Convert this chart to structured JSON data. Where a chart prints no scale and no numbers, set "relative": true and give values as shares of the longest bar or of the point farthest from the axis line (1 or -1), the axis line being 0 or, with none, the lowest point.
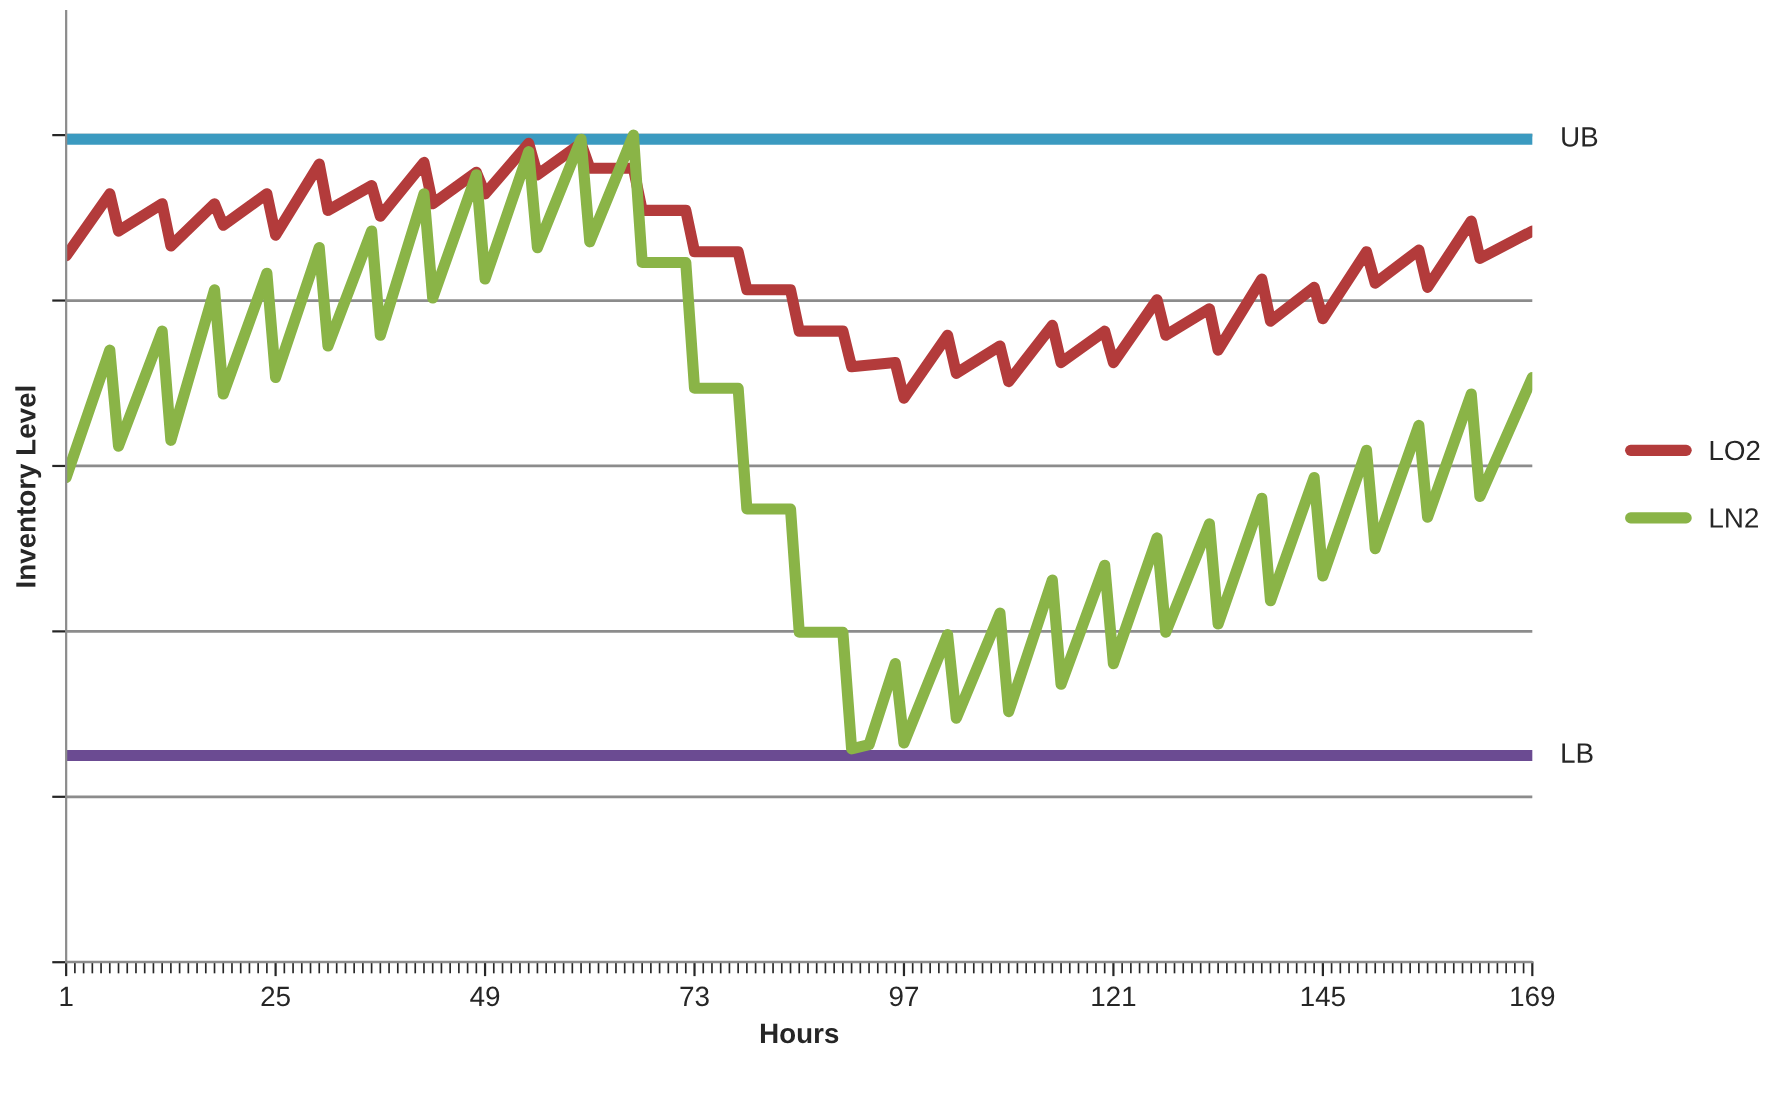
{
  "chart_data": {
    "type": "line",
    "relative": true,
    "xlabel": "Hours",
    "ylabel": "Inventory Level",
    "xlim": [
      1,
      169
    ],
    "xticks": [
      1,
      25,
      49,
      73,
      97,
      121,
      145,
      169
    ],
    "grid": "y",
    "legend": "right",
    "tick_labels": "x",
    "marker": "none",
    "line_style": "solid",
    "series": [
      {
        "name": "LO2",
        "color": "#b33b3b",
        "x": [
          1,
          6,
          7,
          12,
          13,
          18,
          19,
          24,
          25,
          30,
          31,
          36,
          37,
          42,
          43,
          48,
          49,
          54,
          55,
          60,
          61,
          66,
          67,
          72,
          73,
          78,
          79,
          84,
          85,
          90,
          91,
          96,
          97,
          102,
          103,
          108,
          109,
          114,
          115,
          120,
          121,
          126,
          127,
          132,
          133,
          138,
          139,
          144,
          145,
          150,
          151,
          156,
          157,
          162,
          163,
          169
        ],
        "values": [
          0.854,
          0.929,
          0.884,
          0.917,
          0.866,
          0.917,
          0.891,
          0.929,
          0.879,
          0.965,
          0.909,
          0.939,
          0.902,
          0.967,
          0.917,
          0.955,
          0.929,
          0.99,
          0.952,
          0.99,
          0.96,
          0.96,
          0.909,
          0.909,
          0.859,
          0.859,
          0.813,
          0.813,
          0.763,
          0.763,
          0.72,
          0.725,
          0.682,
          0.758,
          0.712,
          0.745,
          0.702,
          0.77,
          0.725,
          0.763,
          0.725,
          0.801,
          0.758,
          0.79,
          0.74,
          0.826,
          0.775,
          0.816,
          0.778,
          0.859,
          0.821,
          0.861,
          0.816,
          0.896,
          0.851,
          0.884
        ]
      },
      {
        "name": "LN2",
        "color": "#8ab447",
        "x": [
          1,
          6,
          7,
          12,
          13,
          18,
          19,
          24,
          25,
          30,
          31,
          36,
          37,
          42,
          43,
          48,
          49,
          54,
          55,
          60,
          61,
          66,
          67,
          72,
          73,
          78,
          79,
          84,
          85,
          90,
          91,
          93,
          96,
          97,
          102,
          103,
          108,
          109,
          114,
          115,
          120,
          121,
          126,
          127,
          132,
          133,
          138,
          139,
          144,
          145,
          150,
          151,
          156,
          157,
          162,
          163,
          169
        ],
        "values": [
          0.586,
          0.74,
          0.624,
          0.763,
          0.631,
          0.813,
          0.687,
          0.833,
          0.707,
          0.864,
          0.745,
          0.884,
          0.758,
          0.929,
          0.803,
          0.952,
          0.826,
          0.98,
          0.864,
          0.995,
          0.871,
          1.0,
          0.846,
          0.846,
          0.694,
          0.694,
          0.548,
          0.548,
          0.399,
          0.399,
          0.258,
          0.263,
          0.361,
          0.265,
          0.396,
          0.295,
          0.422,
          0.303,
          0.462,
          0.336,
          0.48,
          0.361,
          0.513,
          0.399,
          0.53,
          0.409,
          0.561,
          0.437,
          0.586,
          0.467,
          0.619,
          0.5,
          0.649,
          0.538,
          0.687,
          0.563,
          0.707
        ]
      }
    ],
    "ref_lines": [
      {
        "axis": "y",
        "value": 0.995,
        "label": "UB",
        "color": "#3b9ac0",
        "line_style": "solid"
      },
      {
        "axis": "y",
        "value": 0.25,
        "label": "LB",
        "color": "#6b4b92",
        "line_style": "solid"
      }
    ]
  }
}
